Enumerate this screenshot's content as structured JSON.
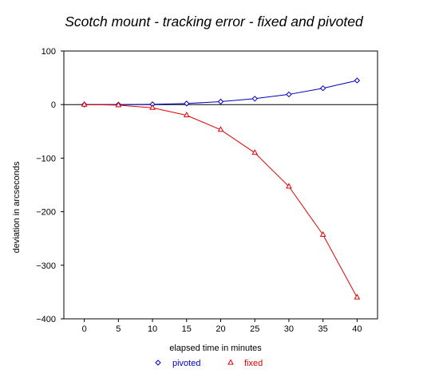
{
  "chart_data": {
    "type": "line",
    "title": "Scotch mount - tracking error - fixed and pivoted",
    "xlabel": "elapsed time in minutes",
    "ylabel": "deviation in arcseconds",
    "xlim": [
      -3,
      43
    ],
    "ylim": [
      -400,
      100
    ],
    "x_ticks": [
      0,
      5,
      10,
      15,
      20,
      25,
      30,
      35,
      40
    ],
    "y_ticks": [
      100,
      0,
      -100,
      -200,
      -300,
      -400
    ],
    "x": [
      0,
      5,
      10,
      15,
      20,
      25,
      30,
      35,
      40
    ],
    "grid": false,
    "zero_line": true,
    "legend_position": "bottom-center",
    "series": [
      {
        "name": "pivoted",
        "color": "#0000c0",
        "marker": "diamond",
        "values": [
          0,
          0,
          0.5,
          2,
          5.5,
          11,
          19,
          30.5,
          45
        ]
      },
      {
        "name": "fixed",
        "color": "#e00000",
        "marker": "triangle",
        "values": [
          0,
          -1,
          -6,
          -20,
          -47,
          -90,
          -153,
          -243,
          -360
        ]
      }
    ]
  }
}
